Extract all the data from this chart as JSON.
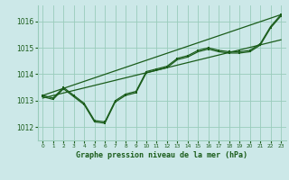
{
  "title": "Graphe pression niveau de la mer (hPa)",
  "background_color": "#cce8e8",
  "grid_color": "#99ccbb",
  "line_color": "#1a5c1a",
  "xlim": [
    -0.5,
    23.5
  ],
  "ylim": [
    1011.5,
    1016.6
  ],
  "yticks": [
    1012,
    1013,
    1014,
    1015,
    1016
  ],
  "xticks": [
    0,
    1,
    2,
    3,
    4,
    5,
    6,
    7,
    8,
    9,
    10,
    11,
    12,
    13,
    14,
    15,
    16,
    17,
    18,
    19,
    20,
    21,
    22,
    23
  ],
  "series1": [
    1013.2,
    1013.1,
    1013.5,
    1013.2,
    1012.9,
    1012.25,
    1012.2,
    1013.0,
    1013.25,
    1013.35,
    1014.1,
    1014.2,
    1014.3,
    1014.6,
    1014.7,
    1014.9,
    1015.0,
    1014.9,
    1014.85,
    1014.85,
    1014.9,
    1015.15,
    1015.8,
    1016.25
  ],
  "series2": [
    1013.15,
    1013.05,
    1013.45,
    1013.15,
    1012.85,
    1012.2,
    1012.15,
    1012.95,
    1013.2,
    1013.3,
    1014.05,
    1014.15,
    1014.25,
    1014.55,
    1014.65,
    1014.85,
    1014.95,
    1014.85,
    1014.8,
    1014.8,
    1014.85,
    1015.1,
    1015.75,
    1016.2
  ],
  "trend1_x": [
    0,
    23
  ],
  "trend1_y": [
    1013.2,
    1016.25
  ],
  "trend2_x": [
    0,
    23
  ],
  "trend2_y": [
    1013.1,
    1015.3
  ]
}
